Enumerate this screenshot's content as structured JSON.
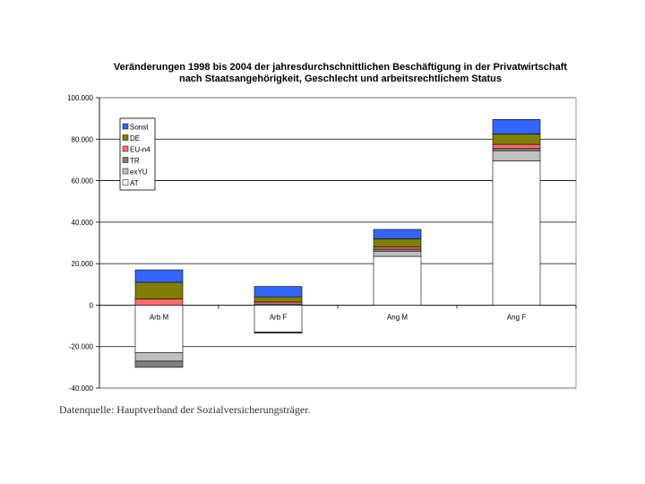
{
  "chart_data": {
    "type": "bar",
    "stacked": true,
    "title": "Veränderungen 1998 bis 2004 der jahresdurchschnittlichen Beschäftigung in der Privatwirtschaft",
    "subtitle": "nach Staatsangehörigkeit, Geschlecht und arbeitsrechtlichem Status",
    "categories": [
      "Arb M",
      "Arb F",
      "Ang M",
      "Ang F"
    ],
    "ylim": [
      -40000,
      100000
    ],
    "yticks": [
      -40000,
      -20000,
      0,
      20000,
      40000,
      60000,
      80000,
      100000
    ],
    "ytick_labels": [
      "-40.000",
      "-20.000",
      "0",
      "20.000",
      "40.000",
      "60.000",
      "80.000",
      "100.000"
    ],
    "grid": true,
    "legend_position": "top-left",
    "series": [
      {
        "name": "AT",
        "color": "#ffffff",
        "values": [
          -23000,
          -13000,
          23500,
          69500
        ]
      },
      {
        "name": "exYU",
        "color": "#c0c0c0",
        "values": [
          -4000,
          500,
          2500,
          5000
        ]
      },
      {
        "name": "TR",
        "color": "#808080",
        "values": [
          -3000,
          -500,
          1000,
          1000
        ]
      },
      {
        "name": "EU-n4",
        "color": "#ff6b6b",
        "values": [
          3000,
          1000,
          1000,
          2000
        ]
      },
      {
        "name": "DE",
        "color": "#808000",
        "values": [
          8000,
          2500,
          4000,
          5000
        ]
      },
      {
        "name": "Sonst",
        "color": "#3366ff",
        "values": [
          6000,
          5000,
          4500,
          7000
        ]
      }
    ],
    "legend_order": [
      "Sonst",
      "DE",
      "EU-n4",
      "TR",
      "exYU",
      "AT"
    ]
  },
  "source_note": "Datenquelle: Hauptverband der Sozialversicherungsträger."
}
